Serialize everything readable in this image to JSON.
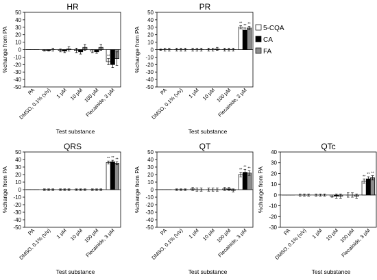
{
  "chart_data": [
    {
      "type": "bar",
      "title": "HR",
      "ylabel": "%change from PA",
      "xlabel": "Test substance",
      "ylim": [
        -50,
        50
      ],
      "yticks": [
        -50,
        -40,
        -30,
        -20,
        -10,
        0,
        10,
        20,
        30,
        40,
        50
      ],
      "categories": [
        "PA",
        "DMSO, 0.1% (v/v)",
        "1 μM",
        "10 μM",
        "100 μM",
        "Flecainide, 3 μM"
      ],
      "series": [
        {
          "name": "5-CQA",
          "values": [
            0,
            -1,
            -1,
            -1,
            -2,
            -16
          ],
          "errors": [
            0,
            1,
            2,
            3,
            2,
            4
          ]
        },
        {
          "name": "CA",
          "values": [
            0,
            -1,
            -2,
            -3,
            -3,
            -20
          ],
          "errors": [
            0,
            1,
            2,
            3,
            2,
            4
          ]
        },
        {
          "name": "FA",
          "values": [
            0,
            0,
            1,
            3,
            3,
            -12
          ],
          "errors": [
            0,
            2,
            3,
            4,
            4,
            9
          ]
        }
      ],
      "significance": [
        null,
        null,
        null,
        null,
        null,
        [
          "**",
          "",
          ""
        ]
      ],
      "legend": false,
      "grid": false
    },
    {
      "type": "bar",
      "title": "PR",
      "ylabel": "%change from PA",
      "xlabel": "Test substance",
      "ylim": [
        -50,
        50
      ],
      "yticks": [
        -50,
        -40,
        -30,
        -20,
        -10,
        0,
        10,
        20,
        30,
        40,
        50
      ],
      "categories": [
        "PA",
        "DMSO, 0.1% (v/v)",
        "1 μM",
        "10 μM",
        "100 μM",
        "Flecainide, 3 μM"
      ],
      "series": [
        {
          "name": "5-CQA",
          "values": [
            0,
            0,
            0,
            0,
            0,
            30
          ],
          "errors": [
            1,
            2,
            2,
            2,
            2,
            2
          ]
        },
        {
          "name": "CA",
          "values": [
            0,
            0,
            0,
            0,
            0,
            26
          ],
          "errors": [
            2,
            2,
            2,
            2,
            2,
            3
          ]
        },
        {
          "name": "FA",
          "values": [
            0,
            0,
            0,
            1,
            0,
            29
          ],
          "errors": [
            2,
            2,
            2,
            2,
            2,
            2
          ]
        }
      ],
      "significance": [
        null,
        null,
        null,
        null,
        null,
        [
          "**",
          "**",
          "**"
        ]
      ],
      "legend": true,
      "legend_position": "right",
      "grid": false
    },
    {
      "type": "bar",
      "title": "QRS",
      "ylabel": "%change from PA",
      "xlabel": "Test substance",
      "ylim": [
        -50,
        50
      ],
      "yticks": [
        -50,
        -40,
        -30,
        -20,
        -10,
        0,
        10,
        20,
        30,
        40,
        50
      ],
      "categories": [
        "PA",
        "DMSO, 0.1% (v/v)",
        "1 μM",
        "10 μM",
        "100 μM",
        "Flecainide, 3 μM"
      ],
      "series": [
        {
          "name": "5-CQA",
          "values": [
            0,
            0,
            0,
            0,
            0,
            36
          ],
          "errors": [
            0,
            1,
            1,
            1,
            1,
            2
          ]
        },
        {
          "name": "CA",
          "values": [
            0,
            0,
            0,
            0,
            0,
            37
          ],
          "errors": [
            0,
            1,
            1,
            1,
            1,
            2
          ]
        },
        {
          "name": "FA",
          "values": [
            0,
            0,
            0,
            0,
            0,
            35
          ],
          "errors": [
            0,
            1,
            1,
            1,
            1,
            2
          ]
        }
      ],
      "significance": [
        null,
        null,
        null,
        null,
        null,
        [
          "**",
          "**",
          "**"
        ]
      ],
      "legend": false,
      "grid": false
    },
    {
      "type": "bar",
      "title": "QT",
      "ylabel": "%change from PA",
      "xlabel": "Test substance",
      "ylim": [
        -50,
        50
      ],
      "yticks": [
        -50,
        -40,
        -30,
        -20,
        -10,
        0,
        10,
        20,
        30,
        40,
        50
      ],
      "categories": [
        "PA",
        "DMSO, 0.1% (v/v)",
        "1 μM",
        "10 μM",
        "100 μM",
        "Flecainide, 3 μM"
      ],
      "series": [
        {
          "name": "5-CQA",
          "values": [
            0,
            0,
            1,
            0,
            1,
            20
          ],
          "errors": [
            0,
            1,
            2,
            2,
            2,
            3
          ]
        },
        {
          "name": "CA",
          "values": [
            0,
            0,
            0,
            0,
            1,
            23
          ],
          "errors": [
            0,
            1,
            2,
            2,
            2,
            4
          ]
        },
        {
          "name": "FA",
          "values": [
            0,
            0,
            0,
            0,
            -1,
            22
          ],
          "errors": [
            0,
            1,
            2,
            2,
            2,
            3
          ]
        }
      ],
      "significance": [
        null,
        null,
        null,
        null,
        null,
        [
          "**",
          "**",
          "**"
        ]
      ],
      "legend": false,
      "grid": false
    },
    {
      "type": "bar",
      "title": "QTc",
      "ylabel": "%change from PA",
      "xlabel": "Test substance",
      "ylim": [
        -30,
        40
      ],
      "yticks": [
        -30,
        -20,
        -10,
        0,
        10,
        20,
        30,
        40
      ],
      "categories": [
        "PA",
        "DMSO, 0.1% (v/v)",
        "1 μM",
        "10 μM",
        "100 μM",
        "Flecainide, 3 μM"
      ],
      "series": [
        {
          "name": "5-CQA",
          "values": [
            0,
            0,
            0,
            -1,
            0,
            13
          ],
          "errors": [
            0,
            1,
            1,
            1,
            2,
            2
          ]
        },
        {
          "name": "CA",
          "values": [
            0,
            0,
            0,
            -1,
            0,
            15
          ],
          "errors": [
            0,
            1,
            1,
            2,
            2,
            2
          ]
        },
        {
          "name": "FA",
          "values": [
            0,
            0,
            0,
            -1,
            -1,
            16
          ],
          "errors": [
            0,
            1,
            1,
            2,
            2,
            2
          ]
        }
      ],
      "significance": [
        null,
        null,
        null,
        null,
        null,
        [
          "**",
          "**",
          "**"
        ]
      ],
      "legend": false,
      "grid": false
    }
  ],
  "colors": {
    "series": [
      "#ffffff",
      "#000000",
      "#8c8c8c"
    ],
    "axis": "#000000"
  }
}
